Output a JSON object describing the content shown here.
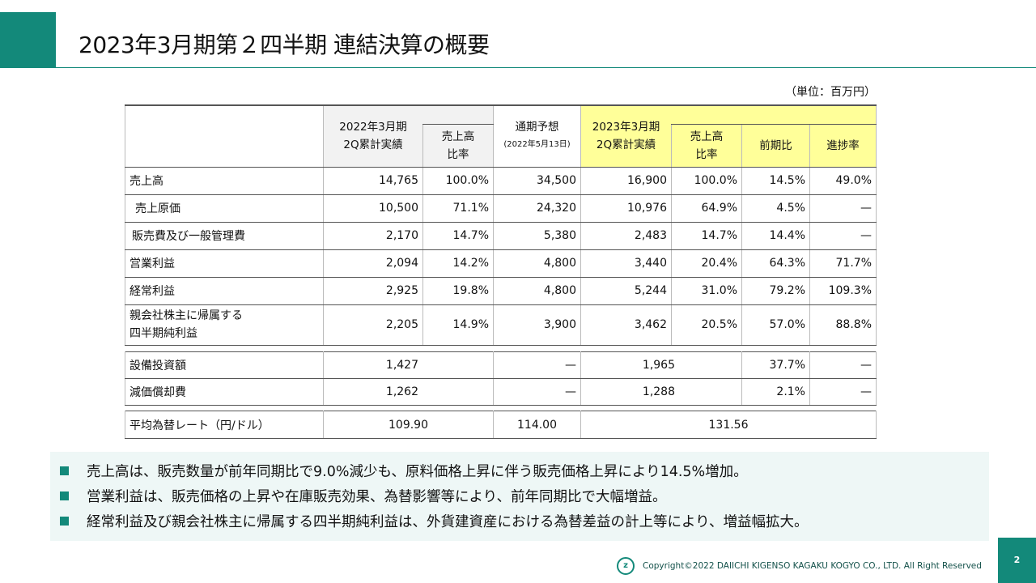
{
  "title": "2023年3月期第２四半期 連結決算の概要",
  "unit": "（単位：百万円）",
  "header": {
    "prev": "2022年3月期",
    "prev2": "2Q累計実績",
    "ratio1": "売上高",
    "ratio2": "比率",
    "forecast": "通期予想",
    "forecast_date": "(2022年5月13日)",
    "cur": "2023年3月期",
    "cur2": "2Q累計実績",
    "yoy": "前期比",
    "progress": "進捗率"
  },
  "rows": [
    {
      "label": "売上高",
      "v": [
        "14,765",
        "100.0%",
        "34,500",
        "16,900",
        "100.0%",
        "14.5%",
        "49.0%"
      ]
    },
    {
      "label": "売上原価",
      "v": [
        "10,500",
        "71.1%",
        "24,320",
        "10,976",
        "64.9%",
        "4.5%",
        "—"
      ]
    },
    {
      "label": "販売費及び一般管理費",
      "v": [
        "2,170",
        "14.7%",
        "5,380",
        "2,483",
        "14.7%",
        "14.4%",
        "—"
      ]
    },
    {
      "label": "営業利益",
      "v": [
        "2,094",
        "14.2%",
        "4,800",
        "3,440",
        "20.4%",
        "64.3%",
        "71.7%"
      ]
    },
    {
      "label": "経常利益",
      "v": [
        "2,925",
        "19.8%",
        "4,800",
        "5,244",
        "31.0%",
        "79.2%",
        "109.3%"
      ]
    },
    {
      "label": "親会社株主に帰属する",
      "label2": "四半期純利益",
      "v": [
        "2,205",
        "14.9%",
        "3,900",
        "3,462",
        "20.5%",
        "57.0%",
        "88.8%"
      ]
    }
  ],
  "capex": [
    {
      "label": "設備投資額",
      "v": [
        "1,427",
        "—",
        "1,965",
        "37.7%",
        "—"
      ]
    },
    {
      "label": "減価償却費",
      "v": [
        "1,262",
        "—",
        "1,288",
        "2.1%",
        "—"
      ]
    }
  ],
  "fx": {
    "label": "平均為替レート（円/ドル）",
    "v": [
      "109.90",
      "114.00",
      "131.56"
    ]
  },
  "bullets": [
    "売上高は、販売数量が前年同期比で9.0%減少も、原料価格上昇に伴う販売価格上昇により14.5%増加。",
    "営業利益は、販売価格の上昇や在庫販売効果、為替影響等により、前年同期比で大幅増益。",
    "経常利益及び親会社株主に帰属する四半期純利益は、外貨建資産における為替差益の計上等により、増益幅拡大。"
  ],
  "footer": "Copyright©2022 DAIICHI KIGENSO KAGAKU KOGYO CO., LTD. All Right Reserved",
  "page": "2",
  "colors": {
    "accent": "#13897a",
    "highlight": "#ffff99"
  }
}
